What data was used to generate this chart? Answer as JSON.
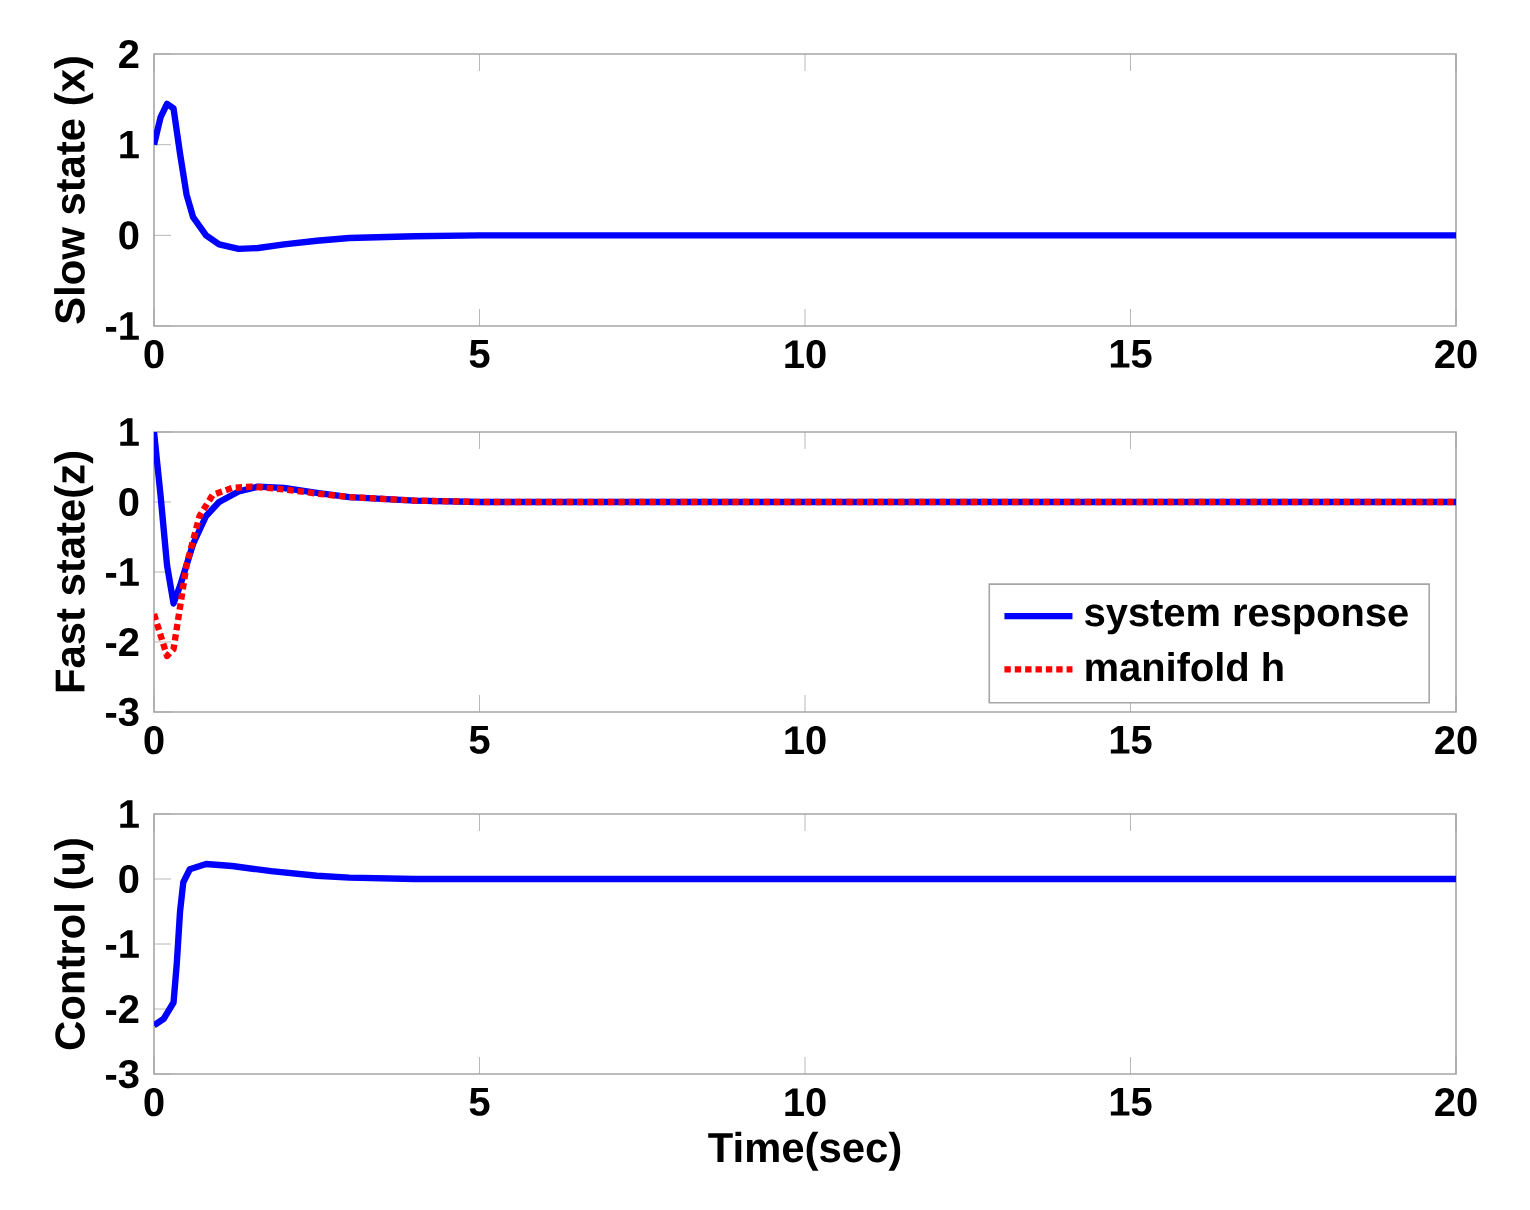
{
  "chart_data": [
    {
      "type": "line",
      "ylabel": "Slow state (x)",
      "xlim": [
        0,
        20
      ],
      "ylim": [
        -1,
        2
      ],
      "xticks": [
        0,
        5,
        10,
        15,
        20
      ],
      "yticks": [
        -1,
        0,
        1,
        2
      ],
      "grid": false,
      "legend": false,
      "series": [
        {
          "name": null,
          "color": "#0000ff",
          "line_style": "solid",
          "x": [
            0,
            0.1,
            0.2,
            0.3,
            0.4,
            0.5,
            0.6,
            0.8,
            1.0,
            1.3,
            1.6,
            2,
            2.5,
            3,
            4,
            5,
            10,
            20
          ],
          "values": [
            1.0,
            1.3,
            1.45,
            1.4,
            0.9,
            0.45,
            0.2,
            0.0,
            -0.1,
            -0.15,
            -0.14,
            -0.1,
            -0.06,
            -0.03,
            -0.01,
            0,
            0,
            0
          ]
        }
      ]
    },
    {
      "type": "line",
      "ylabel": "Fast state(z)",
      "xlim": [
        0,
        20
      ],
      "ylim": [
        -3,
        1
      ],
      "xticks": [
        0,
        5,
        10,
        15,
        20
      ],
      "yticks": [
        -3,
        -2,
        -1,
        0,
        1
      ],
      "grid": false,
      "legend": "bottom right",
      "series": [
        {
          "name": "system response",
          "color": "#0000ff",
          "line_style": "solid",
          "x": [
            0,
            0.1,
            0.2,
            0.3,
            0.4,
            0.6,
            0.8,
            1.0,
            1.3,
            1.6,
            2,
            2.5,
            3,
            4,
            5,
            20
          ],
          "values": [
            1,
            0.1,
            -0.9,
            -1.45,
            -1.2,
            -0.6,
            -0.2,
            0.0,
            0.15,
            0.22,
            0.2,
            0.13,
            0.07,
            0.02,
            0,
            0
          ]
        },
        {
          "name": "manifold h",
          "color": "#ff0000",
          "line_style": "dotted",
          "x": [
            0,
            0.1,
            0.2,
            0.3,
            0.4,
            0.5,
            0.7,
            0.9,
            1.2,
            1.5,
            2,
            2.5,
            3,
            4,
            5,
            20
          ],
          "values": [
            -1.6,
            -1.9,
            -2.2,
            -2.1,
            -1.5,
            -0.9,
            -0.2,
            0.1,
            0.2,
            0.22,
            0.18,
            0.12,
            0.07,
            0.02,
            0,
            0
          ]
        }
      ]
    },
    {
      "type": "line",
      "xlabel": "Time(sec)",
      "ylabel": "Control (u)",
      "xlim": [
        0,
        20
      ],
      "ylim": [
        -3,
        1
      ],
      "xticks": [
        0,
        5,
        10,
        15,
        20
      ],
      "yticks": [
        -3,
        -2,
        -1,
        0,
        1
      ],
      "grid": false,
      "legend": false,
      "series": [
        {
          "name": null,
          "color": "#0000ff",
          "line_style": "solid",
          "x": [
            0,
            0.15,
            0.3,
            0.35,
            0.4,
            0.45,
            0.55,
            0.8,
            1.2,
            1.8,
            2.5,
            3,
            4,
            20
          ],
          "values": [
            -2.25,
            -2.15,
            -1.9,
            -1.3,
            -0.5,
            -0.05,
            0.15,
            0.23,
            0.2,
            0.12,
            0.05,
            0.02,
            0,
            0
          ]
        }
      ]
    }
  ]
}
